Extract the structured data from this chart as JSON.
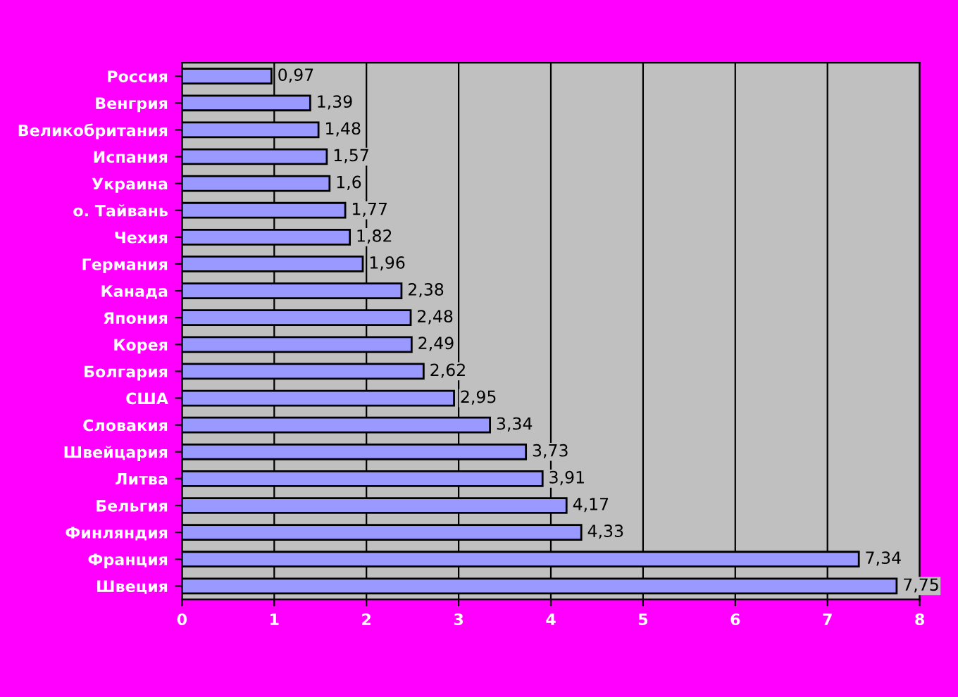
{
  "chart_data": {
    "type": "bar",
    "orientation": "horizontal",
    "categories": [
      "Россия",
      "Венгрия",
      "Великобритания",
      "Испания",
      "Украина",
      "о. Тайвань",
      "Чехия",
      "Германия",
      "Канада",
      "Япония",
      "Корея",
      "Болгария",
      "США",
      "Словакия",
      "Швейцария",
      "Литва",
      "Бельгия",
      "Финляндия",
      "Франция",
      "Швеция"
    ],
    "values": [
      0.97,
      1.39,
      1.48,
      1.57,
      1.6,
      1.77,
      1.82,
      1.96,
      2.38,
      2.48,
      2.49,
      2.62,
      2.95,
      3.34,
      3.73,
      3.91,
      4.17,
      4.33,
      7.34,
      7.75
    ],
    "value_labels": [
      "0,97",
      "1,39",
      "1,48",
      "1,57",
      "1,6",
      "1,77",
      "1,82",
      "1,96",
      "2,38",
      "2,48",
      "2,49",
      "2,62",
      "2,95",
      "3,34",
      "3,73",
      "3,91",
      "4,17",
      "4,33",
      "7,34",
      "7,75"
    ],
    "color": "#9999ff",
    "xlim": [
      0,
      8
    ],
    "xticks": [
      0,
      1,
      2,
      3,
      4,
      5,
      6,
      7,
      8
    ],
    "grid": "x"
  }
}
